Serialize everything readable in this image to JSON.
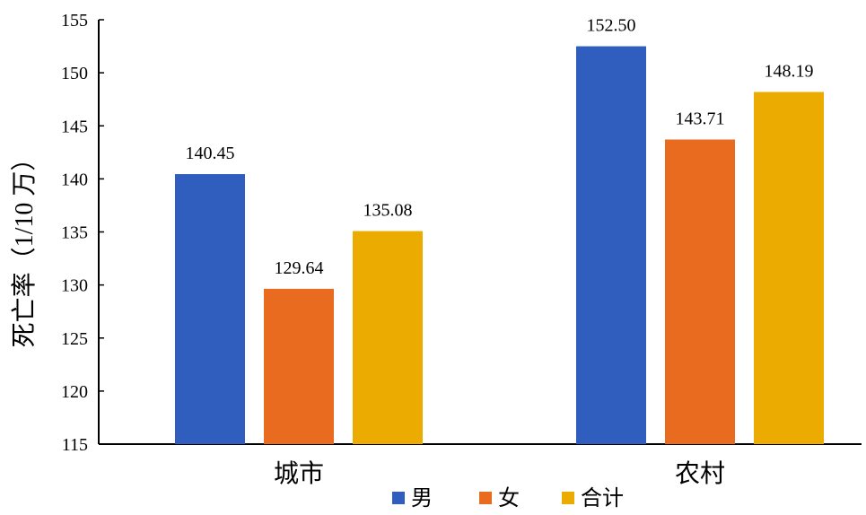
{
  "chart_data": {
    "type": "bar",
    "ylabel": "死亡率（1/10 万）",
    "xlabel": "",
    "categories": [
      "城市",
      "农村"
    ],
    "series": [
      {
        "name": "男",
        "values": [
          140.45,
          152.5
        ],
        "color": "#305ebf"
      },
      {
        "name": "女",
        "values": [
          129.64,
          143.71
        ],
        "color": "#e86b20"
      },
      {
        "name": "合计",
        "values": [
          135.08,
          148.19
        ],
        "color": "#ebab00"
      }
    ],
    "ylim": [
      115,
      155
    ],
    "yticks": [
      "115",
      "120",
      "125",
      "130",
      "135",
      "140",
      "145",
      "150",
      "155"
    ],
    "data_labels": [
      [
        "140.45",
        "152.50"
      ],
      [
        "129.64",
        "143.71"
      ],
      [
        "135.08",
        "148.19"
      ]
    ],
    "grid": false,
    "legend_position": "bottom"
  }
}
